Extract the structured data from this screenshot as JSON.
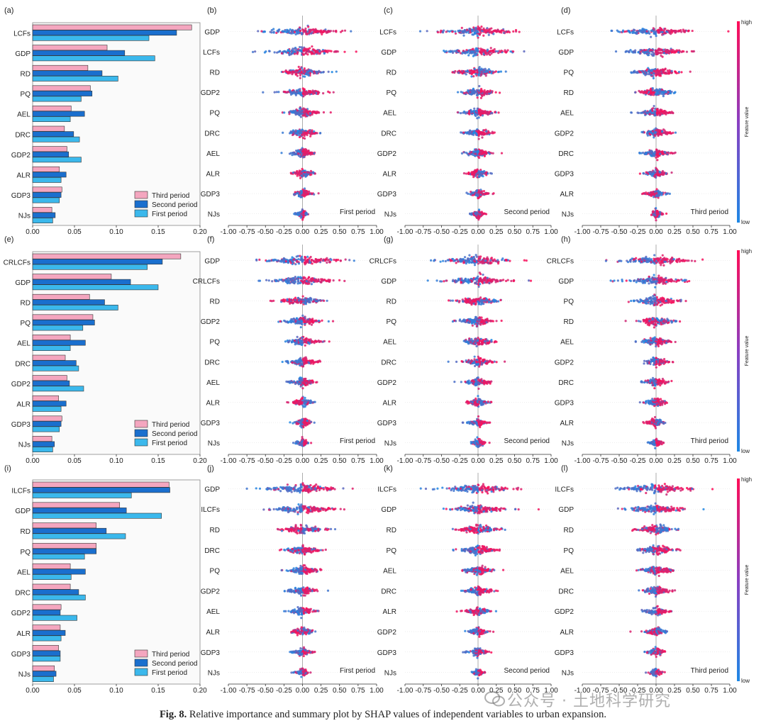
{
  "caption": {
    "label": "Fig. 8.",
    "text": " Relative importance and summary plot by SHAP values of independent variables to urban expansion."
  },
  "watermark": "公众号 · 土地科学研究",
  "colors": {
    "third_period": "#f4a6bf",
    "second_period": "#1a6fce",
    "first_period": "#3bb8ec",
    "shap_high": "#ff0d57",
    "shap_low": "#1e88e5"
  },
  "chart_data": [
    {
      "panel": "(a)",
      "type": "bar",
      "orientation": "horizontal",
      "xlim": [
        0,
        0.2
      ],
      "xticks": [
        "0.00",
        "0.05",
        "0.10",
        "0.15",
        "0.20"
      ],
      "categories": [
        "LCFs",
        "GDP",
        "RD",
        "PQ",
        "AEL",
        "DRC",
        "GDP2",
        "ALR",
        "GDP3",
        "NJs"
      ],
      "series": [
        {
          "name": "Third period",
          "values": [
            0.19,
            0.089,
            0.066,
            0.069,
            0.046,
            0.038,
            0.041,
            0.032,
            0.035,
            0.023
          ]
        },
        {
          "name": "Second period",
          "values": [
            0.172,
            0.11,
            0.083,
            0.071,
            0.062,
            0.049,
            0.043,
            0.04,
            0.034,
            0.027
          ]
        },
        {
          "name": "First period",
          "values": [
            0.139,
            0.146,
            0.102,
            0.058,
            0.045,
            0.056,
            0.058,
            0.034,
            0.032,
            0.024
          ]
        }
      ],
      "legend": "bottom-right"
    },
    {
      "panel": "(b)",
      "type": "scatter",
      "subtype": "shap-beeswarm",
      "xlim": [
        -1,
        1
      ],
      "xticks": [
        "-1.00",
        "-0.75",
        "-0.50",
        "-0.25",
        "0.00",
        "0.25",
        "0.50",
        "0.75",
        "1.00"
      ],
      "features": [
        "GDP",
        "LCFs",
        "RD",
        "GDP2",
        "PQ",
        "DRC",
        "AEL",
        "ALR",
        "GDP3",
        "NJs"
      ],
      "annotation": "First period",
      "colorbar": false
    },
    {
      "panel": "(c)",
      "type": "scatter",
      "subtype": "shap-beeswarm",
      "xlim": [
        -1,
        1
      ],
      "xticks": [
        "-1.00",
        "-0.75",
        "-0.50",
        "-0.25",
        "0.00",
        "0.25",
        "0.50",
        "0.75",
        "1.00"
      ],
      "features": [
        "LCFs",
        "GDP",
        "RD",
        "PQ",
        "AEL",
        "DRC",
        "GDP2",
        "ALR",
        "GDP3",
        "NJs"
      ],
      "annotation": "Second period",
      "colorbar": false
    },
    {
      "panel": "(d)",
      "type": "scatter",
      "subtype": "shap-beeswarm",
      "xlim": [
        -1,
        1
      ],
      "xticks": [
        "-1.00",
        "-0.75",
        "-0.50",
        "-0.25",
        "0.00",
        "0.25",
        "0.50",
        "0.75",
        "1.00"
      ],
      "features": [
        "LCFs",
        "GDP",
        "PQ",
        "RD",
        "AEL",
        "GDP2",
        "DRC",
        "GDP3",
        "ALR",
        "NJs"
      ],
      "annotation": "Third period",
      "colorbar": true,
      "colorbar_label": "Feature value",
      "colorbar_high": "high",
      "colorbar_low": "low"
    },
    {
      "panel": "(e)",
      "type": "bar",
      "orientation": "horizontal",
      "xlim": [
        0,
        0.2
      ],
      "xticks": [
        "0.00",
        "0.05",
        "0.10",
        "0.15",
        "0.20"
      ],
      "categories": [
        "CRLCFs",
        "GDP",
        "RD",
        "PQ",
        "AEL",
        "DRC",
        "GDP2",
        "ALR",
        "GDP3",
        "NJs"
      ],
      "series": [
        {
          "name": "Third period",
          "values": [
            0.177,
            0.094,
            0.068,
            0.072,
            0.045,
            0.039,
            0.041,
            0.031,
            0.035,
            0.023
          ]
        },
        {
          "name": "Second period",
          "values": [
            0.155,
            0.117,
            0.086,
            0.074,
            0.063,
            0.052,
            0.044,
            0.04,
            0.034,
            0.026
          ]
        },
        {
          "name": "First period",
          "values": [
            0.137,
            0.15,
            0.102,
            0.06,
            0.045,
            0.055,
            0.061,
            0.034,
            0.032,
            0.024
          ]
        }
      ],
      "legend": "bottom-right"
    },
    {
      "panel": "(f)",
      "type": "scatter",
      "subtype": "shap-beeswarm",
      "xlim": [
        -1,
        1
      ],
      "xticks": [
        "-1.00",
        "-0.75",
        "-0.50",
        "-0.25",
        "0.00",
        "0.25",
        "0.50",
        "0.75",
        "1.00"
      ],
      "features": [
        "GDP",
        "CRLCFs",
        "RD",
        "GDP2",
        "PQ",
        "DRC",
        "AEL",
        "ALR",
        "GDP3",
        "NJs"
      ],
      "annotation": "First period",
      "colorbar": false
    },
    {
      "panel": "(g)",
      "type": "scatter",
      "subtype": "shap-beeswarm",
      "xlim": [
        -1,
        1
      ],
      "xticks": [
        "-1.00",
        "-0.75",
        "-0.50",
        "-0.25",
        "0.00",
        "0.25",
        "0.50",
        "0.75",
        "1.00"
      ],
      "features": [
        "CRLCFs",
        "GDP",
        "RD",
        "PQ",
        "AEL",
        "DRC",
        "GDP2",
        "ALR",
        "GDP3",
        "NJs"
      ],
      "annotation": "Second period",
      "colorbar": false
    },
    {
      "panel": "(h)",
      "type": "scatter",
      "subtype": "shap-beeswarm",
      "xlim": [
        -1,
        1
      ],
      "xticks": [
        "-1.00",
        "-0.75",
        "-0.50",
        "-0.25",
        "0.00",
        "0.25",
        "0.50",
        "0.75",
        "1.00"
      ],
      "features": [
        "CRLCFs",
        "GDP",
        "PQ",
        "RD",
        "AEL",
        "GDP2",
        "DRC",
        "GDP3",
        "ALR",
        "NJs"
      ],
      "annotation": "Third period",
      "colorbar": true,
      "colorbar_label": "Feature value",
      "colorbar_high": "high",
      "colorbar_low": "low"
    },
    {
      "panel": "(i)",
      "type": "bar",
      "orientation": "horizontal",
      "xlim": [
        0,
        0.2
      ],
      "xticks": [
        "0.00",
        "0.05",
        "0.10",
        "0.15",
        "0.20"
      ],
      "categories": [
        "ILCFs",
        "GDP",
        "RD",
        "PQ",
        "AEL",
        "DRC",
        "GDP2",
        "ALR",
        "GDP3",
        "NJs"
      ],
      "series": [
        {
          "name": "Third period",
          "values": [
            0.163,
            0.104,
            0.076,
            0.076,
            0.045,
            0.045,
            0.034,
            0.033,
            0.031,
            0.026
          ]
        },
        {
          "name": "Second period",
          "values": [
            0.164,
            0.112,
            0.088,
            0.076,
            0.063,
            0.055,
            0.033,
            0.039,
            0.033,
            0.028
          ]
        },
        {
          "name": "First period",
          "values": [
            0.118,
            0.154,
            0.111,
            0.062,
            0.046,
            0.063,
            0.053,
            0.034,
            0.033,
            0.025
          ]
        }
      ],
      "legend": "bottom-right"
    },
    {
      "panel": "(j)",
      "type": "scatter",
      "subtype": "shap-beeswarm",
      "xlim": [
        -1,
        1
      ],
      "xticks": [
        "-1.00",
        "-0.75",
        "-0.50",
        "-0.25",
        "0.00",
        "0.25",
        "0.50",
        "0.75",
        "1.00"
      ],
      "features": [
        "GDP",
        "ILCFs",
        "RD",
        "DRC",
        "PQ",
        "GDP2",
        "AEL",
        "ALR",
        "GDP3",
        "NJs"
      ],
      "annotation": "First period",
      "colorbar": false
    },
    {
      "panel": "(k)",
      "type": "scatter",
      "subtype": "shap-beeswarm",
      "xlim": [
        -1,
        1
      ],
      "xticks": [
        "-1.00",
        "-0.75",
        "-0.50",
        "-0.25",
        "0.00",
        "0.25",
        "0.50",
        "0.75",
        "1.00"
      ],
      "features": [
        "ILCFs",
        "GDP",
        "RD",
        "PQ",
        "AEL",
        "DRC",
        "ALR",
        "GDP2",
        "GDP3",
        "NJs"
      ],
      "annotation": "Second period",
      "colorbar": false
    },
    {
      "panel": "(l)",
      "type": "scatter",
      "subtype": "shap-beeswarm",
      "xlim": [
        -1,
        1
      ],
      "xticks": [
        "-1.00",
        "-0.75",
        "-0.50",
        "-0.25",
        "0.00",
        "0.25",
        "0.50",
        "0.75",
        "1.00"
      ],
      "features": [
        "ILCFs",
        "GDP",
        "RD",
        "PQ",
        "AEL",
        "DRC",
        "GDP2",
        "ALR",
        "GDP3",
        "NJs"
      ],
      "annotation": "Third period",
      "colorbar": true,
      "colorbar_label": "Feature value",
      "colorbar_high": "high",
      "colorbar_low": "low"
    }
  ]
}
